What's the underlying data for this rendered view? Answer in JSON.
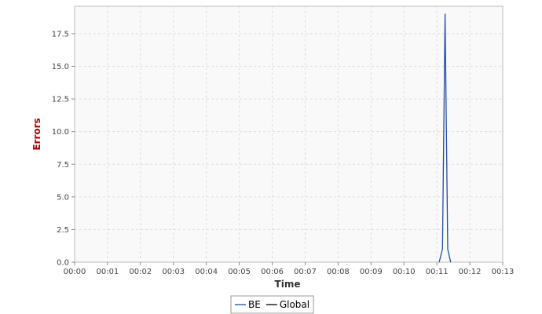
{
  "chart_data": {
    "type": "line",
    "title": "",
    "xlabel": "Time",
    "ylabel": "Errors",
    "x_unit": "minutes",
    "xlim": [
      0,
      13
    ],
    "ylim": [
      0,
      19.6
    ],
    "x_ticks": [
      "00:00",
      "00:01",
      "00:02",
      "00:03",
      "00:04",
      "00:05",
      "00:06",
      "00:07",
      "00:08",
      "00:09",
      "00:10",
      "00:11",
      "00:12",
      "00:13"
    ],
    "y_ticks": [
      "0.0",
      "2.5",
      "5.0",
      "7.5",
      "10.0",
      "12.5",
      "15.0",
      "17.5"
    ],
    "grid": true,
    "legend_position": "bottom",
    "series": [
      {
        "name": "BE",
        "color": "#1f4fa3",
        "x": [
          11.07,
          11.17,
          11.25,
          11.33,
          11.42
        ],
        "y": [
          0,
          1,
          19,
          1,
          0
        ]
      },
      {
        "name": "Global",
        "color": "#000000",
        "x": [],
        "y": []
      }
    ],
    "colors": {
      "plot_background": "#f9f9f9",
      "grid": "#dddddd",
      "ylabel": "#b00000",
      "xlabel": "#333333"
    }
  }
}
